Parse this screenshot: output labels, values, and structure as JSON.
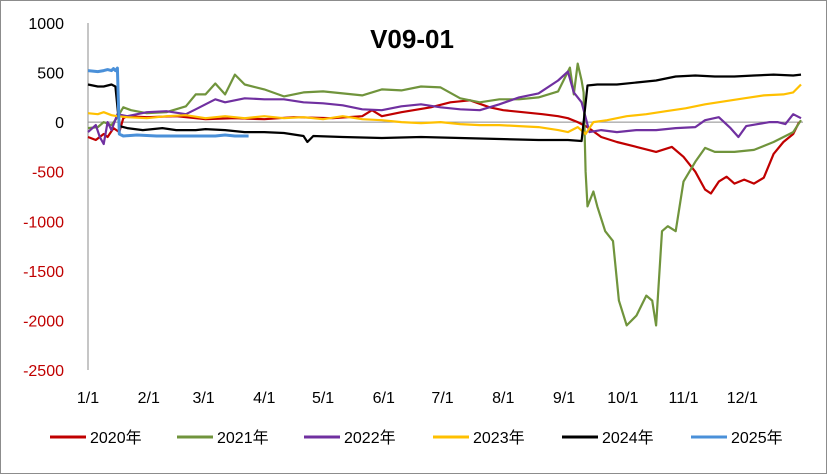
{
  "chart_data": {
    "type": "line",
    "title": "V09-01",
    "xlabel": "",
    "ylabel": "",
    "ylim": [
      -2500,
      1000
    ],
    "yticks": [
      1000,
      500,
      0,
      -500,
      -1000,
      -1500,
      -2000,
      -2500
    ],
    "negative_tick_color": "#c00000",
    "positive_tick_color": "#000000",
    "x_domain": [
      0,
      365
    ],
    "xticks": [
      {
        "label": "1/1",
        "day": 0
      },
      {
        "label": "2/1",
        "day": 31
      },
      {
        "label": "3/1",
        "day": 59
      },
      {
        "label": "4/1",
        "day": 90
      },
      {
        "label": "5/1",
        "day": 120
      },
      {
        "label": "6/1",
        "day": 151
      },
      {
        "label": "7/1",
        "day": 181
      },
      {
        "label": "8/1",
        "day": 212
      },
      {
        "label": "9/1",
        "day": 243
      },
      {
        "label": "10/1",
        "day": 273
      },
      {
        "label": "11/1",
        "day": 304
      },
      {
        "label": "12/1",
        "day": 334
      }
    ],
    "legend_position": "bottom",
    "series": [
      {
        "name": "2020年",
        "color": "#c00000",
        "points": [
          [
            0,
            -150
          ],
          [
            4,
            -180
          ],
          [
            8,
            -120
          ],
          [
            10,
            -150
          ],
          [
            13,
            -60
          ],
          [
            16,
            -100
          ],
          [
            18,
            40
          ],
          [
            20,
            60
          ],
          [
            30,
            50
          ],
          [
            45,
            60
          ],
          [
            60,
            30
          ],
          [
            75,
            40
          ],
          [
            90,
            30
          ],
          [
            105,
            50
          ],
          [
            125,
            40
          ],
          [
            140,
            60
          ],
          [
            145,
            120
          ],
          [
            150,
            60
          ],
          [
            160,
            100
          ],
          [
            175,
            150
          ],
          [
            185,
            200
          ],
          [
            195,
            220
          ],
          [
            205,
            150
          ],
          [
            212,
            120
          ],
          [
            222,
            100
          ],
          [
            232,
            80
          ],
          [
            240,
            60
          ],
          [
            245,
            40
          ],
          [
            250,
            0
          ],
          [
            255,
            -50
          ],
          [
            262,
            -150
          ],
          [
            270,
            -200
          ],
          [
            280,
            -250
          ],
          [
            290,
            -300
          ],
          [
            298,
            -250
          ],
          [
            304,
            -350
          ],
          [
            310,
            -500
          ],
          [
            315,
            -680
          ],
          [
            318,
            -720
          ],
          [
            322,
            -600
          ],
          [
            326,
            -550
          ],
          [
            330,
            -620
          ],
          [
            335,
            -580
          ],
          [
            340,
            -620
          ],
          [
            345,
            -560
          ],
          [
            350,
            -320
          ],
          [
            355,
            -200
          ],
          [
            360,
            -120
          ],
          [
            363,
            0
          ]
        ]
      },
      {
        "name": "2021年",
        "color": "#70943c",
        "points": [
          [
            0,
            -60
          ],
          [
            5,
            -50
          ],
          [
            8,
            0
          ],
          [
            12,
            -30
          ],
          [
            15,
            50
          ],
          [
            18,
            150
          ],
          [
            22,
            120
          ],
          [
            30,
            90
          ],
          [
            40,
            100
          ],
          [
            50,
            160
          ],
          [
            55,
            280
          ],
          [
            60,
            280
          ],
          [
            65,
            390
          ],
          [
            70,
            280
          ],
          [
            75,
            480
          ],
          [
            80,
            380
          ],
          [
            90,
            330
          ],
          [
            100,
            260
          ],
          [
            110,
            300
          ],
          [
            120,
            310
          ],
          [
            130,
            290
          ],
          [
            140,
            270
          ],
          [
            150,
            330
          ],
          [
            160,
            320
          ],
          [
            170,
            360
          ],
          [
            180,
            350
          ],
          [
            190,
            240
          ],
          [
            200,
            200
          ],
          [
            210,
            230
          ],
          [
            220,
            230
          ],
          [
            230,
            250
          ],
          [
            240,
            310
          ],
          [
            246,
            550
          ],
          [
            248,
            280
          ],
          [
            250,
            590
          ],
          [
            252,
            420
          ],
          [
            253,
            300
          ],
          [
            254,
            -500
          ],
          [
            255,
            -850
          ],
          [
            258,
            -700
          ],
          [
            260,
            -850
          ],
          [
            264,
            -1100
          ],
          [
            268,
            -1200
          ],
          [
            271,
            -1800
          ],
          [
            275,
            -2050
          ],
          [
            280,
            -1950
          ],
          [
            285,
            -1750
          ],
          [
            288,
            -1800
          ],
          [
            290,
            -2050
          ],
          [
            293,
            -1100
          ],
          [
            296,
            -1050
          ],
          [
            300,
            -1100
          ],
          [
            304,
            -600
          ],
          [
            310,
            -400
          ],
          [
            315,
            -260
          ],
          [
            320,
            -300
          ],
          [
            330,
            -300
          ],
          [
            340,
            -280
          ],
          [
            350,
            -200
          ],
          [
            360,
            -100
          ],
          [
            364,
            20
          ]
        ]
      },
      {
        "name": "2022年",
        "color": "#7030a0",
        "points": [
          [
            0,
            -100
          ],
          [
            4,
            -30
          ],
          [
            6,
            -150
          ],
          [
            8,
            -220
          ],
          [
            10,
            0
          ],
          [
            12,
            -80
          ],
          [
            15,
            80
          ],
          [
            20,
            60
          ],
          [
            30,
            100
          ],
          [
            40,
            110
          ],
          [
            50,
            80
          ],
          [
            55,
            130
          ],
          [
            60,
            180
          ],
          [
            65,
            230
          ],
          [
            70,
            200
          ],
          [
            80,
            240
          ],
          [
            90,
            230
          ],
          [
            100,
            230
          ],
          [
            110,
            200
          ],
          [
            120,
            190
          ],
          [
            130,
            170
          ],
          [
            140,
            130
          ],
          [
            150,
            120
          ],
          [
            160,
            160
          ],
          [
            170,
            180
          ],
          [
            180,
            150
          ],
          [
            190,
            130
          ],
          [
            200,
            120
          ],
          [
            210,
            180
          ],
          [
            220,
            250
          ],
          [
            230,
            290
          ],
          [
            240,
            420
          ],
          [
            245,
            510
          ],
          [
            248,
            300
          ],
          [
            252,
            200
          ],
          [
            256,
            -100
          ],
          [
            262,
            -80
          ],
          [
            270,
            -100
          ],
          [
            280,
            -80
          ],
          [
            290,
            -80
          ],
          [
            300,
            -60
          ],
          [
            310,
            -50
          ],
          [
            315,
            20
          ],
          [
            322,
            50
          ],
          [
            328,
            -60
          ],
          [
            332,
            -150
          ],
          [
            336,
            -40
          ],
          [
            342,
            -20
          ],
          [
            348,
            0
          ],
          [
            352,
            0
          ],
          [
            356,
            -20
          ],
          [
            360,
            80
          ],
          [
            364,
            40
          ]
        ]
      },
      {
        "name": "2023年",
        "color": "#ffc000",
        "points": [
          [
            0,
            90
          ],
          [
            5,
            80
          ],
          [
            8,
            100
          ],
          [
            12,
            70
          ],
          [
            15,
            60
          ],
          [
            20,
            50
          ],
          [
            30,
            40
          ],
          [
            40,
            60
          ],
          [
            50,
            70
          ],
          [
            60,
            40
          ],
          [
            70,
            60
          ],
          [
            80,
            40
          ],
          [
            90,
            60
          ],
          [
            100,
            40
          ],
          [
            110,
            50
          ],
          [
            120,
            30
          ],
          [
            130,
            60
          ],
          [
            140,
            30
          ],
          [
            150,
            20
          ],
          [
            160,
            0
          ],
          [
            170,
            -10
          ],
          [
            180,
            0
          ],
          [
            190,
            -20
          ],
          [
            200,
            -30
          ],
          [
            210,
            -30
          ],
          [
            220,
            -40
          ],
          [
            230,
            -50
          ],
          [
            240,
            -80
          ],
          [
            245,
            -100
          ],
          [
            250,
            -50
          ],
          [
            254,
            -120
          ],
          [
            258,
            0
          ],
          [
            265,
            20
          ],
          [
            275,
            60
          ],
          [
            285,
            80
          ],
          [
            295,
            110
          ],
          [
            305,
            140
          ],
          [
            315,
            180
          ],
          [
            325,
            210
          ],
          [
            335,
            240
          ],
          [
            345,
            270
          ],
          [
            355,
            280
          ],
          [
            360,
            300
          ],
          [
            364,
            380
          ]
        ]
      },
      {
        "name": "2024年",
        "color": "#000000",
        "points": [
          [
            0,
            380
          ],
          [
            5,
            360
          ],
          [
            8,
            360
          ],
          [
            12,
            380
          ],
          [
            14,
            360
          ],
          [
            16,
            -40
          ],
          [
            20,
            -60
          ],
          [
            28,
            -80
          ],
          [
            38,
            -60
          ],
          [
            45,
            -80
          ],
          [
            55,
            -80
          ],
          [
            60,
            -70
          ],
          [
            70,
            -80
          ],
          [
            80,
            -100
          ],
          [
            90,
            -100
          ],
          [
            100,
            -110
          ],
          [
            110,
            -140
          ],
          [
            112,
            -200
          ],
          [
            115,
            -140
          ],
          [
            130,
            -150
          ],
          [
            150,
            -160
          ],
          [
            170,
            -150
          ],
          [
            190,
            -160
          ],
          [
            210,
            -170
          ],
          [
            230,
            -180
          ],
          [
            245,
            -180
          ],
          [
            252,
            -190
          ],
          [
            255,
            370
          ],
          [
            260,
            380
          ],
          [
            270,
            380
          ],
          [
            280,
            400
          ],
          [
            290,
            420
          ],
          [
            295,
            440
          ],
          [
            300,
            460
          ],
          [
            310,
            470
          ],
          [
            320,
            460
          ],
          [
            330,
            460
          ],
          [
            340,
            470
          ],
          [
            350,
            480
          ],
          [
            360,
            470
          ],
          [
            364,
            480
          ]
        ]
      },
      {
        "name": "2025年",
        "color": "#4a90d9",
        "points": [
          [
            0,
            520
          ],
          [
            5,
            510
          ],
          [
            8,
            520
          ],
          [
            10,
            530
          ],
          [
            12,
            520
          ],
          [
            13,
            540
          ],
          [
            14,
            520
          ],
          [
            15,
            545
          ],
          [
            16,
            -120
          ],
          [
            18,
            -140
          ],
          [
            25,
            -130
          ],
          [
            35,
            -140
          ],
          [
            45,
            -140
          ],
          [
            55,
            -140
          ],
          [
            65,
            -140
          ],
          [
            70,
            -130
          ],
          [
            75,
            -140
          ],
          [
            82,
            -140
          ]
        ]
      }
    ]
  }
}
